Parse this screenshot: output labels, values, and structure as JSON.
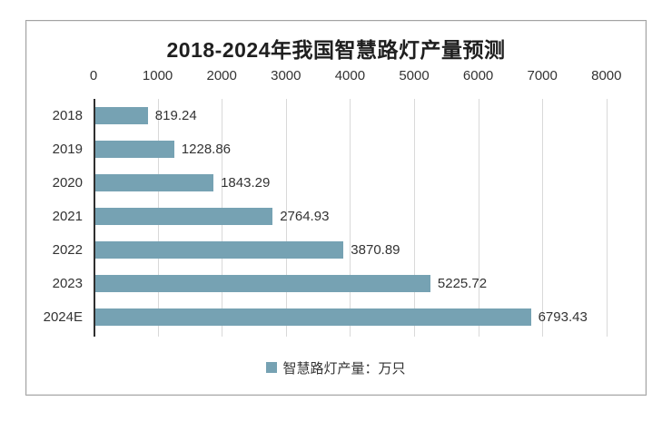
{
  "chart_data": {
    "type": "bar",
    "orientation": "horizontal",
    "title": "2018-2024年我国智慧路灯产量预测",
    "categories": [
      "2018",
      "2019",
      "2020",
      "2021",
      "2022",
      "2023",
      "2024E"
    ],
    "series": [
      {
        "name": "智慧路灯产量：万只",
        "values": [
          819.24,
          1228.86,
          1843.29,
          2764.93,
          3870.89,
          5225.72,
          6793.43
        ]
      }
    ],
    "value_labels": [
      "819.24",
      "1228.86",
      "1843.29",
      "2764.93",
      "3870.89",
      "5225.72",
      "6793.43"
    ],
    "xlim": [
      0,
      8000
    ],
    "x_ticks": [
      "0",
      "1000",
      "2000",
      "3000",
      "4000",
      "5000",
      "6000",
      "7000",
      "8000"
    ],
    "x_tick_values": [
      0,
      1000,
      2000,
      3000,
      4000,
      5000,
      6000,
      7000,
      8000
    ],
    "axis_position": "top",
    "grid": "vertical",
    "legend": {
      "position": "bottom",
      "label": "智慧路灯产量：万只"
    },
    "colors": {
      "bar": "#76a2b3",
      "grid": "#d9d9d9",
      "axis": "#2f2f2f",
      "text": "#333333",
      "title": "#1f1f1f",
      "frame_border": "#a3a3a3",
      "background": "#ffffff"
    }
  }
}
